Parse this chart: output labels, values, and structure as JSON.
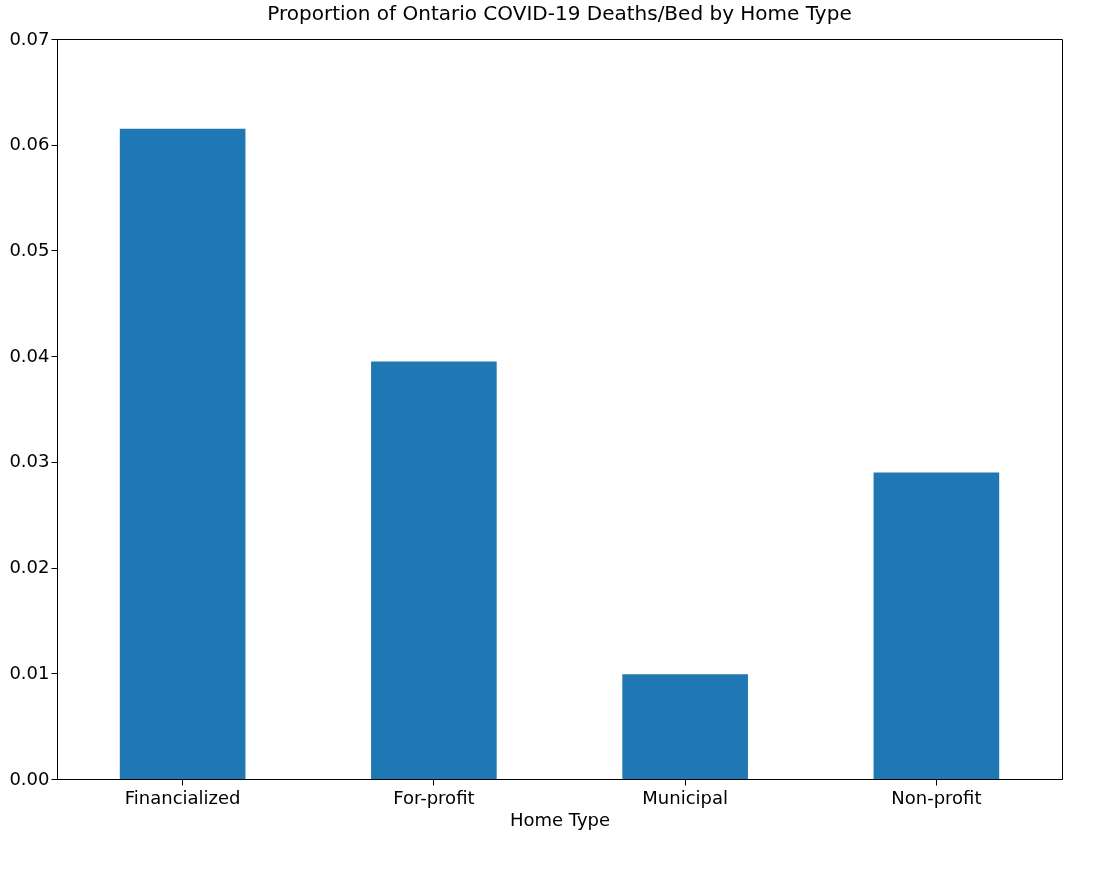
{
  "chart_data": {
    "type": "bar",
    "title": "Proportion of Ontario COVID-19 Deaths/Bed by Home Type",
    "xlabel": "Home Type",
    "categories": [
      "Financialized",
      "For-profit",
      "Municipal",
      "Non-profit"
    ],
    "values": [
      0.0615,
      0.0395,
      0.0099,
      0.029
    ],
    "color": "#1f77b4",
    "ylim": [
      0,
      0.07
    ],
    "yticks": [
      {
        "value": 0,
        "label": "0.00"
      },
      {
        "value": 0.01,
        "label": "0.01"
      },
      {
        "value": 0.02,
        "label": "0.02"
      },
      {
        "value": 0.03,
        "label": "0.03"
      },
      {
        "value": 0.04,
        "label": "0.04"
      },
      {
        "value": 0.05,
        "label": "0.05"
      },
      {
        "value": 0.06,
        "label": "0.06"
      },
      {
        "value": 0.07,
        "label": "0.07"
      }
    ],
    "grid": false
  }
}
